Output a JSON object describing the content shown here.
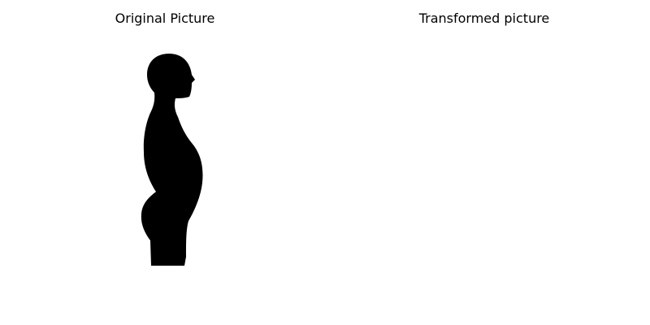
{
  "panels": {
    "original": {
      "title": "Original Picture",
      "image": "human-profile-silhouette",
      "fill_color": "#000000"
    },
    "transformed": {
      "title": "Transformed picture",
      "image": "empty"
    }
  },
  "background_color": "#ffffff"
}
